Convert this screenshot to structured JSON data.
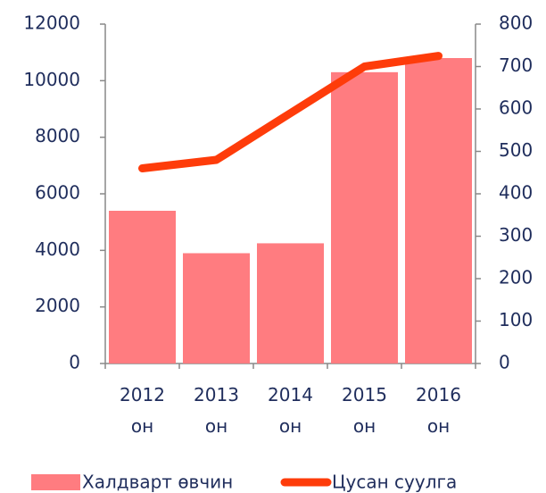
{
  "chart_data": {
    "type": "bar-line",
    "categories": [
      "2012 он",
      "2013 он",
      "2014 он",
      "2015 он",
      "2016 он"
    ],
    "series": [
      {
        "name": "Халдварт өвчин",
        "color": "#ff7c80",
        "type": "bar",
        "values": [
          5400,
          3900,
          4250,
          10300,
          10800
        ]
      },
      {
        "name": "Цусан суулга",
        "color": "#fe3c0a",
        "type": "line",
        "axis": "y2",
        "values": [
          460,
          480,
          590,
          700,
          725
        ]
      }
    ],
    "ylim": [
      0,
      12000
    ],
    "yticks": [
      0,
      2000,
      4000,
      6000,
      8000,
      10000,
      12000
    ],
    "y2lim": [
      0,
      800
    ],
    "y2ticks": [
      0,
      100,
      200,
      300,
      400,
      500,
      600,
      700,
      800
    ],
    "legend": "bottom"
  }
}
